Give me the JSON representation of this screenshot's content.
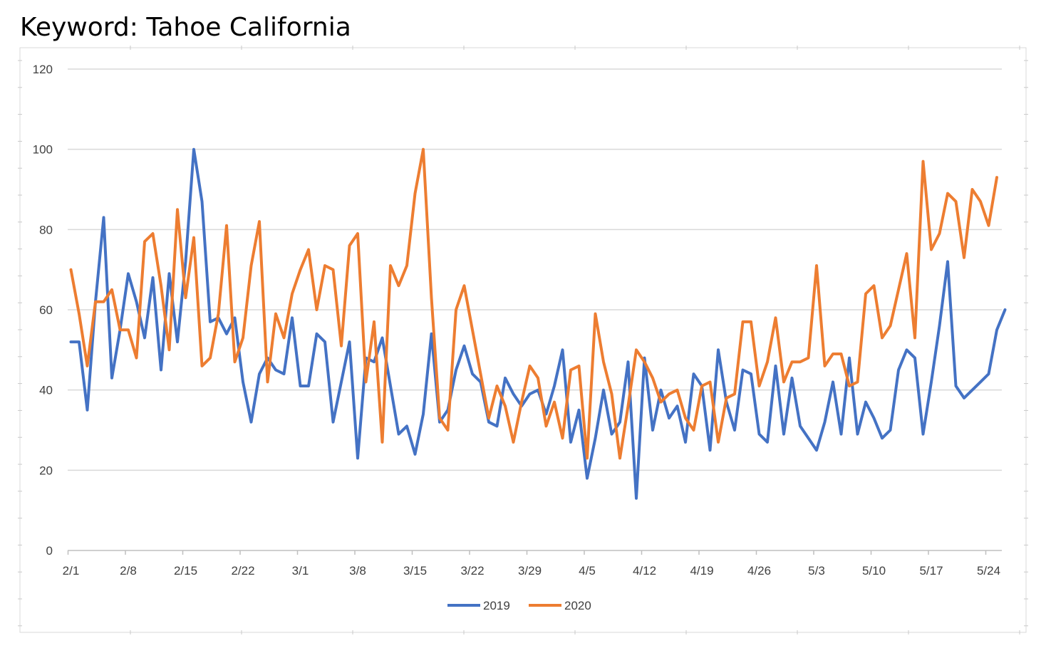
{
  "page": {
    "title": "Keyword: Tahoe California"
  },
  "chart_data": {
    "type": "line",
    "title": "Keyword: Tahoe California",
    "xlabel": "",
    "ylabel": "",
    "ylim": [
      0,
      120
    ],
    "yticks": [
      0,
      20,
      40,
      60,
      80,
      100,
      120
    ],
    "x_tick_labels": [
      "2/1",
      "2/8",
      "2/15",
      "2/22",
      "3/1",
      "3/8",
      "3/15",
      "3/22",
      "3/29",
      "4/5",
      "4/12",
      "4/19",
      "4/26",
      "5/3",
      "5/10",
      "5/17",
      "5/24"
    ],
    "x_tick_step_days": 7,
    "x_start": "2/1",
    "grid": "horizontal",
    "legend_position": "bottom",
    "series": [
      {
        "name": "2019",
        "color": "#4472C4",
        "values": [
          52,
          52,
          35,
          62,
          83,
          43,
          55,
          69,
          62,
          53,
          68,
          45,
          69,
          52,
          72,
          100,
          87,
          57,
          58,
          54,
          58,
          42,
          32,
          44,
          48,
          45,
          44,
          58,
          41,
          41,
          54,
          52,
          32,
          42,
          52,
          23,
          48,
          47,
          53,
          41,
          29,
          31,
          24,
          34,
          54,
          32,
          35,
          45,
          51,
          44,
          42,
          32,
          31,
          43,
          39,
          36,
          39,
          40,
          34,
          41,
          50,
          27,
          35,
          18,
          28,
          40,
          29,
          32,
          47,
          13,
          48,
          30,
          40,
          33,
          36,
          27,
          44,
          41,
          25,
          50,
          37,
          30,
          45,
          44,
          29,
          27,
          46,
          29,
          43,
          31,
          28,
          25,
          32,
          42,
          29,
          48,
          29,
          37,
          33,
          28,
          30,
          45,
          50,
          48,
          29,
          42,
          56,
          72,
          41,
          38,
          40,
          42,
          44,
          55,
          60
        ]
      },
      {
        "name": "2020",
        "color": "#ED7D31",
        "values": [
          70,
          59,
          46,
          62,
          62,
          65,
          55,
          55,
          48,
          77,
          79,
          66,
          50,
          85,
          63,
          78,
          46,
          48,
          59,
          81,
          47,
          53,
          71,
          82,
          42,
          59,
          53,
          64,
          70,
          75,
          60,
          71,
          70,
          51,
          76,
          79,
          42,
          57,
          27,
          71,
          66,
          71,
          89,
          100,
          63,
          33,
          30,
          60,
          66,
          55,
          44,
          33,
          41,
          36,
          27,
          37,
          46,
          43,
          31,
          37,
          28,
          45,
          46,
          23,
          59,
          47,
          39,
          23,
          36,
          50,
          47,
          43,
          37,
          39,
          40,
          33,
          30,
          41,
          42,
          27,
          38,
          39,
          57,
          57,
          41,
          47,
          58,
          42,
          47,
          47,
          48,
          71,
          46,
          49,
          49,
          41,
          42,
          64,
          66,
          53,
          56,
          65,
          74,
          53,
          97,
          75,
          79,
          89,
          87,
          73,
          90,
          87,
          81,
          93
        ]
      }
    ]
  }
}
